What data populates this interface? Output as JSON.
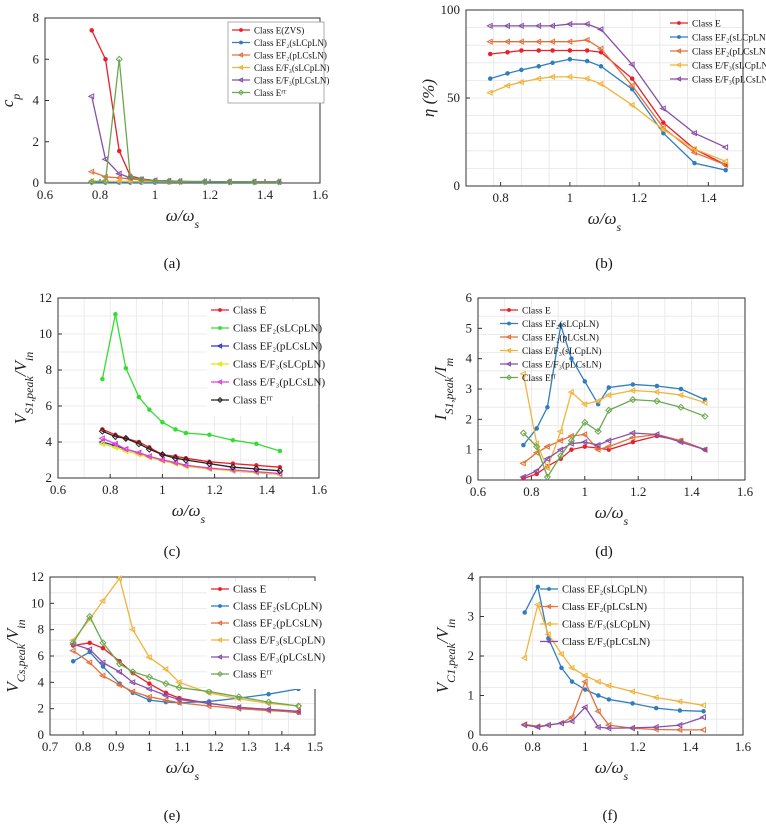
{
  "chart_data": [
    {
      "type": "line",
      "caption": "(a)",
      "ylabel": "c_p",
      "xlabel": "ω/ω_s",
      "xlim": [
        0.6,
        1.6
      ],
      "ylim": [
        0,
        8
      ],
      "xticks": [
        "0.6",
        "0.8",
        "1",
        "1.2",
        "1.4",
        "1.6"
      ],
      "yticks": [
        "0",
        "2",
        "4",
        "6",
        "8"
      ],
      "grid": false,
      "legend_position": "top-right",
      "x": [
        0.77,
        0.82,
        0.87,
        0.91,
        0.95,
        1.0,
        1.05,
        1.09,
        1.18,
        1.27,
        1.36,
        1.45
      ],
      "series": [
        {
          "name": "Class E(ZVS)",
          "color": "#e8202a",
          "marker": "dot",
          "values": [
            7.4,
            6.0,
            1.55,
            0.35,
            0.2,
            0.12,
            0.1,
            0.08,
            0.06,
            0.05,
            0.05,
            0.05
          ]
        },
        {
          "name": "Class EF₂(sLCpLN)",
          "color": "#2f7dbf",
          "marker": "dot",
          "values": [
            0.02,
            0.02,
            0.02,
            0.02,
            0.02,
            0.02,
            0.03,
            0.04,
            0.04,
            0.04,
            0.04,
            0.04
          ]
        },
        {
          "name": "Class EF₂(pLCsLN)",
          "color": "#e5703a",
          "marker": "tri",
          "values": [
            0.55,
            0.3,
            0.25,
            0.2,
            0.15,
            0.12,
            0.1,
            0.08,
            0.07,
            0.06,
            0.06,
            0.06
          ]
        },
        {
          "name": "Class E/F₃(sLCpLN)",
          "color": "#f0b43c",
          "marker": "tri",
          "values": [
            0.1,
            0.08,
            0.08,
            0.08,
            0.07,
            0.07,
            0.06,
            0.06,
            0.06,
            0.06,
            0.05,
            0.05
          ]
        },
        {
          "name": "Class E/F₃(pLCsLN)",
          "color": "#8a4fa8",
          "marker": "tri",
          "values": [
            4.2,
            1.15,
            0.45,
            0.25,
            0.18,
            0.12,
            0.1,
            0.08,
            0.07,
            0.06,
            0.06,
            0.06
          ]
        },
        {
          "name": "Class Eᶠᵀ",
          "color": "#6aa84f",
          "marker": "diamond",
          "values": [
            0.05,
            0.1,
            6.0,
            0.3,
            0.15,
            0.1,
            0.08,
            0.07,
            0.06,
            0.05,
            0.05,
            0.05
          ]
        }
      ]
    },
    {
      "type": "line",
      "caption": "(b)",
      "ylabel": "η (%)",
      "xlabel": "ω/ω_s",
      "xlim": [
        0.7,
        1.5
      ],
      "ylim": [
        0,
        100
      ],
      "xticks": [
        "0.8",
        "1",
        "1.2",
        "1.4"
      ],
      "xtickvals": [
        0.8,
        1.0,
        1.2,
        1.4
      ],
      "yticks": [
        "0",
        "50",
        "100"
      ],
      "grid": true,
      "legend_position": "top-right",
      "x": [
        0.77,
        0.82,
        0.86,
        0.91,
        0.95,
        1.0,
        1.05,
        1.09,
        1.18,
        1.27,
        1.36,
        1.45
      ],
      "series": [
        {
          "name": "Class E",
          "color": "#e8202a",
          "marker": "dot",
          "values": [
            75,
            76,
            77,
            77,
            77,
            77,
            77,
            76,
            61,
            36,
            21,
            12
          ]
        },
        {
          "name": "Class EF₂(sLCpLN)",
          "color": "#2f7dbf",
          "marker": "dot",
          "values": [
            61,
            64,
            66,
            68,
            70,
            72,
            71,
            68,
            55,
            30,
            13,
            9
          ]
        },
        {
          "name": "Class EF₂(pLCsLN)",
          "color": "#e5703a",
          "marker": "tri",
          "values": [
            82,
            82,
            82,
            82,
            82,
            82,
            83,
            78,
            57,
            33,
            19,
            12
          ]
        },
        {
          "name": "Class E/F₃(sLCpLN)",
          "color": "#f0b43c",
          "marker": "tri",
          "values": [
            53,
            57,
            59,
            61,
            62,
            62,
            61,
            58,
            46,
            32,
            21,
            14
          ]
        },
        {
          "name": "Class E/F₃(pLCsLN)",
          "color": "#8a4fa8",
          "marker": "tri",
          "values": [
            91,
            91,
            91,
            91,
            91,
            92,
            92,
            89,
            69,
            44,
            30,
            22
          ]
        }
      ]
    },
    {
      "type": "line",
      "caption": "(c)",
      "ylabel": "V_S1,peak/V_in",
      "xlabel": "ω/ω_s",
      "xlim": [
        0.6,
        1.6
      ],
      "ylim": [
        2,
        12
      ],
      "xticks": [
        "0.6",
        "0.8",
        "1",
        "1.2",
        "1.4",
        "1.6"
      ],
      "yticks": [
        "2",
        "4",
        "6",
        "8",
        "10",
        "12"
      ],
      "grid": true,
      "legend_position": "top-right",
      "x": [
        0.77,
        0.82,
        0.86,
        0.91,
        0.95,
        1.0,
        1.05,
        1.09,
        1.18,
        1.27,
        1.36,
        1.45
      ],
      "series": [
        {
          "name": "Class E",
          "color": "#e8202a",
          "marker": "dot",
          "values": [
            4.7,
            4.4,
            4.2,
            4.0,
            3.7,
            3.3,
            3.2,
            3.1,
            2.9,
            2.8,
            2.7,
            2.6
          ]
        },
        {
          "name": "Class EF₂(sLCpLN)",
          "color": "#33dd33",
          "marker": "dot",
          "values": [
            7.5,
            11.1,
            8.1,
            6.5,
            5.8,
            5.1,
            4.7,
            4.5,
            4.4,
            4.1,
            3.9,
            3.5
          ]
        },
        {
          "name": "Class EF₂(pLCsLN)",
          "color": "#3333cc",
          "marker": "tri",
          "values": [
            4.0,
            3.8,
            3.6,
            3.4,
            3.2,
            3.0,
            2.85,
            2.7,
            2.55,
            2.4,
            2.3,
            2.2
          ]
        },
        {
          "name": "Class E/F₃(sLCpLN)",
          "color": "#e6e600",
          "marker": "tri",
          "values": [
            3.9,
            3.7,
            3.5,
            3.3,
            3.15,
            2.95,
            2.8,
            2.65,
            2.5,
            2.4,
            2.3,
            2.2
          ]
        },
        {
          "name": "Class E/F₃(pLCsLN)",
          "color": "#e23ee2",
          "marker": "tri",
          "values": [
            4.2,
            3.9,
            3.6,
            3.4,
            3.2,
            3.0,
            2.85,
            2.7,
            2.55,
            2.45,
            2.35,
            2.25
          ]
        },
        {
          "name": "Class Eᶠᵀ",
          "color": "#222222",
          "marker": "diamond",
          "values": [
            4.6,
            4.3,
            4.2,
            3.9,
            3.6,
            3.3,
            3.1,
            3.0,
            2.8,
            2.6,
            2.5,
            2.4
          ]
        }
      ]
    },
    {
      "type": "line",
      "caption": "(d)",
      "ylabel": "I_S1,peak/I_m",
      "xlabel": "ω/ω_s",
      "xlim": [
        0.6,
        1.6
      ],
      "ylim": [
        0,
        6
      ],
      "xticks": [
        "0.6",
        "0.8",
        "1",
        "1.2",
        "1.4",
        "1.6"
      ],
      "yticks": [
        "0",
        "1",
        "2",
        "3",
        "4",
        "5",
        "6"
      ],
      "grid": true,
      "legend_position": "top-left",
      "x": [
        0.77,
        0.82,
        0.86,
        0.91,
        0.95,
        1.0,
        1.05,
        1.09,
        1.18,
        1.27,
        1.36,
        1.45
      ],
      "series": [
        {
          "name": "Class E",
          "color": "#e8202a",
          "marker": "dot",
          "values": [
            0.05,
            0.2,
            0.45,
            0.7,
            1.0,
            1.1,
            1.05,
            1.0,
            1.25,
            1.45,
            1.3,
            1.0
          ]
        },
        {
          "name": "Class EF₂(sLCpLN)",
          "color": "#2f7dbf",
          "marker": "dot",
          "values": [
            1.15,
            1.7,
            2.4,
            5.1,
            4.0,
            3.25,
            2.5,
            3.05,
            3.15,
            3.1,
            3.0,
            2.65
          ]
        },
        {
          "name": "Class EF₂(pLCsLN)",
          "color": "#e5703a",
          "marker": "tri",
          "values": [
            0.55,
            0.9,
            1.1,
            1.3,
            1.45,
            1.5,
            1.0,
            1.1,
            1.4,
            1.5,
            1.3,
            1.0
          ]
        },
        {
          "name": "Class E/F₃(sLCpLN)",
          "color": "#f0b43c",
          "marker": "tri",
          "values": [
            3.5,
            1.2,
            0.4,
            1.6,
            2.9,
            2.5,
            2.6,
            2.8,
            2.95,
            2.9,
            2.8,
            2.55
          ]
        },
        {
          "name": "Class E/F₃(pLCsLN)",
          "color": "#8a4fa8",
          "marker": "tri",
          "values": [
            0.1,
            0.3,
            0.7,
            1.0,
            1.2,
            1.25,
            1.15,
            1.3,
            1.55,
            1.5,
            1.25,
            1.0
          ]
        },
        {
          "name": "Class Eᶠᵀ",
          "color": "#6aa84f",
          "marker": "diamond",
          "values": [
            1.55,
            1.1,
            0.1,
            0.8,
            1.3,
            1.9,
            1.6,
            2.3,
            2.65,
            2.6,
            2.4,
            2.1
          ]
        }
      ]
    },
    {
      "type": "line",
      "caption": "(e)",
      "ylabel": "V_Cs,peak/V_in",
      "xlabel": "ω/ω_s",
      "xlim": [
        0.7,
        1.5
      ],
      "ylim": [
        0,
        12
      ],
      "xticks": [
        "0.7",
        "0.8",
        "0.9",
        "1",
        "1.1",
        "1.2",
        "1.3",
        "1.4",
        "1.5"
      ],
      "yticks": [
        "0",
        "2",
        "4",
        "6",
        "8",
        "10",
        "12"
      ],
      "grid": true,
      "legend_position": "top-right",
      "x": [
        0.77,
        0.82,
        0.86,
        0.91,
        0.95,
        1.0,
        1.05,
        1.09,
        1.18,
        1.27,
        1.36,
        1.45
      ],
      "series": [
        {
          "name": "Class E",
          "color": "#e8202a",
          "marker": "dot",
          "values": [
            6.8,
            7.0,
            6.6,
            5.6,
            4.7,
            3.9,
            3.2,
            2.8,
            2.4,
            2.1,
            1.9,
            1.7
          ]
        },
        {
          "name": "Class EF₂(sLCpLN)",
          "color": "#2f7dbf",
          "marker": "dot",
          "values": [
            5.6,
            6.3,
            5.2,
            3.9,
            3.2,
            2.65,
            2.5,
            2.45,
            2.55,
            2.8,
            3.1,
            3.5
          ]
        },
        {
          "name": "Class EF₂(pLCsLN)",
          "color": "#e5703a",
          "marker": "tri",
          "values": [
            6.4,
            5.5,
            4.5,
            3.8,
            3.3,
            2.9,
            2.65,
            2.45,
            2.2,
            2.0,
            1.85,
            1.75
          ]
        },
        {
          "name": "Class E/F₃(sLCpLN)",
          "color": "#f0b43c",
          "marker": "tri",
          "values": [
            7.2,
            8.8,
            10.2,
            11.9,
            8.0,
            5.9,
            5.0,
            4.0,
            3.2,
            2.75,
            2.4,
            2.2
          ]
        },
        {
          "name": "Class E/F₃(pLCsLN)",
          "color": "#8a4fa8",
          "marker": "tri",
          "values": [
            6.9,
            6.5,
            5.5,
            4.8,
            4.0,
            3.5,
            3.0,
            2.7,
            2.4,
            2.1,
            1.95,
            1.8
          ]
        },
        {
          "name": "Class Eᶠᵀ",
          "color": "#6aa84f",
          "marker": "diamond",
          "values": [
            7.0,
            9.0,
            7.0,
            5.4,
            4.8,
            4.4,
            3.9,
            3.6,
            3.3,
            2.9,
            2.5,
            2.2
          ]
        }
      ]
    },
    {
      "type": "line",
      "caption": "(f)",
      "ylabel": "V_C1,peak/V_in",
      "xlabel": "ω/ω_s",
      "xlim": [
        0.6,
        1.6
      ],
      "ylim": [
        0,
        4
      ],
      "xticks": [
        "0.6",
        "0.8",
        "1",
        "1.2",
        "1.4",
        "1.6"
      ],
      "yticks": [
        "0",
        "1",
        "2",
        "3",
        "4"
      ],
      "grid": true,
      "legend_position": "top-right",
      "x": [
        0.77,
        0.82,
        0.86,
        0.91,
        0.95,
        1.0,
        1.05,
        1.09,
        1.18,
        1.27,
        1.36,
        1.45
      ],
      "series": [
        {
          "name": "Class EF₂(sLCpLN)",
          "color": "#2f7dbf",
          "marker": "dot",
          "values": [
            3.1,
            3.75,
            2.45,
            1.7,
            1.35,
            1.15,
            1.0,
            0.9,
            0.8,
            0.68,
            0.62,
            0.6
          ]
        },
        {
          "name": "Class EF₂(pLCsLN)",
          "color": "#e5703a",
          "marker": "tri",
          "values": [
            0.27,
            0.22,
            0.25,
            0.3,
            0.45,
            1.35,
            0.6,
            0.25,
            0.17,
            0.14,
            0.13,
            0.13
          ]
        },
        {
          "name": "Class E/F₃(sLCpLN)",
          "color": "#f0b43c",
          "marker": "tri",
          "values": [
            1.95,
            3.3,
            2.55,
            2.05,
            1.7,
            1.5,
            1.35,
            1.25,
            1.1,
            0.95,
            0.85,
            0.75
          ]
        },
        {
          "name": "Class E/F₃(pLCsLN)",
          "color": "#8a4fa8",
          "marker": "tri",
          "values": [
            0.25,
            0.2,
            0.25,
            0.3,
            0.35,
            0.7,
            0.2,
            0.17,
            0.18,
            0.2,
            0.25,
            0.45
          ]
        }
      ]
    }
  ]
}
